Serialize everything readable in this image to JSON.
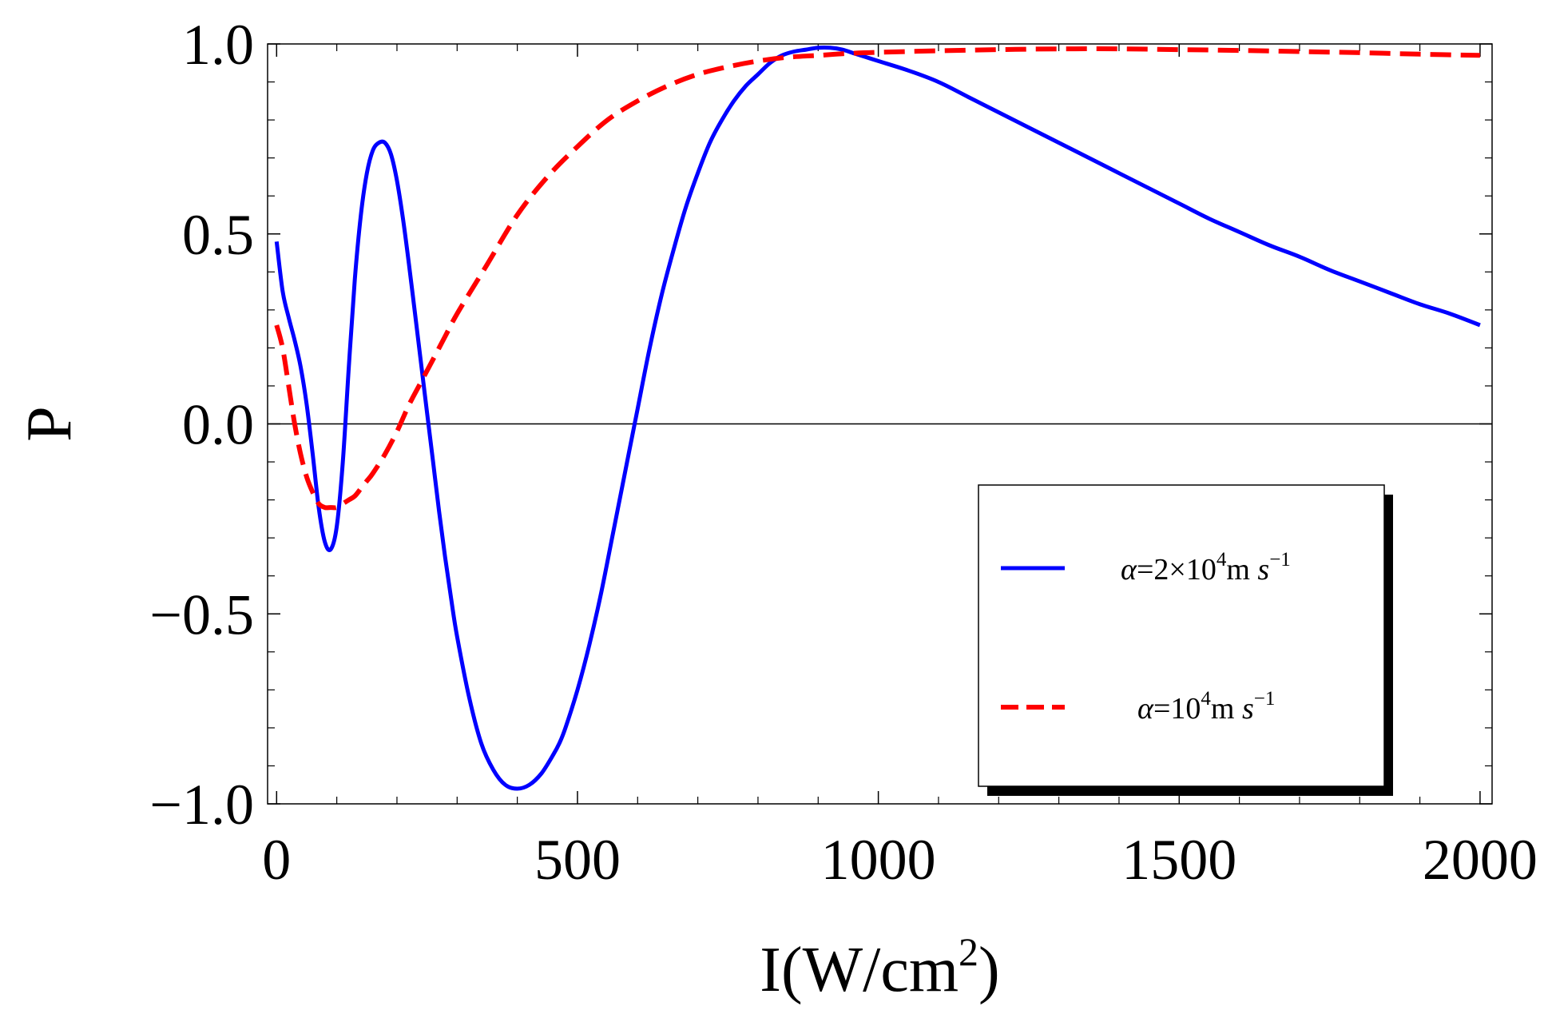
{
  "chart_data": {
    "type": "line",
    "title": "",
    "xlabel": "I(W/cm",
    "xlabel_sup": "2",
    "xlabel_end": ")",
    "ylabel": "P",
    "xlim": [
      -15,
      2020
    ],
    "ylim": [
      -1.0,
      1.0
    ],
    "x_ticks": [
      0,
      500,
      1000,
      1500,
      2000
    ],
    "x_tick_labels": [
      "0",
      "500",
      "1000",
      "1500",
      "2000"
    ],
    "y_ticks": [
      -1.0,
      -0.5,
      0.0,
      0.5,
      1.0
    ],
    "y_tick_labels": [
      "−1.0",
      "−0.5",
      "0.0",
      "0.5",
      "1.0"
    ],
    "legend_position": "lower-right",
    "series": [
      {
        "name": "alpha=2x10^4 m s^-1",
        "label_parts": [
          "α",
          "=2×10",
          "4",
          "m ",
          "s",
          "−1"
        ],
        "color": "#0000ff",
        "style": "solid",
        "x": [
          0,
          10,
          20,
          30,
          40,
          50,
          60,
          70,
          80,
          90,
          100,
          110,
          120,
          130,
          140,
          150,
          160,
          170,
          180,
          190,
          200,
          210,
          220,
          230,
          240,
          250,
          260,
          270,
          280,
          290,
          300,
          320,
          340,
          360,
          380,
          400,
          420,
          440,
          460,
          470,
          480,
          500,
          520,
          540,
          560,
          580,
          600,
          620,
          640,
          660,
          680,
          700,
          720,
          740,
          760,
          780,
          800,
          820,
          840,
          860,
          880,
          900,
          920,
          940,
          960,
          980,
          1000,
          1050,
          1100,
          1150,
          1200,
          1250,
          1300,
          1350,
          1400,
          1450,
          1500,
          1550,
          1600,
          1650,
          1700,
          1750,
          1800,
          1850,
          1900,
          1950,
          2000
        ],
        "y": [
          0.48,
          0.35,
          0.28,
          0.22,
          0.15,
          0.05,
          -0.08,
          -0.22,
          -0.31,
          -0.33,
          -0.27,
          -0.1,
          0.15,
          0.38,
          0.55,
          0.66,
          0.72,
          0.74,
          0.74,
          0.71,
          0.64,
          0.54,
          0.42,
          0.29,
          0.16,
          0.03,
          -0.1,
          -0.23,
          -0.35,
          -0.46,
          -0.56,
          -0.72,
          -0.84,
          -0.91,
          -0.95,
          -0.96,
          -0.95,
          -0.92,
          -0.87,
          -0.84,
          -0.8,
          -0.7,
          -0.58,
          -0.44,
          -0.28,
          -0.12,
          0.04,
          0.2,
          0.34,
          0.46,
          0.57,
          0.66,
          0.74,
          0.8,
          0.85,
          0.89,
          0.92,
          0.95,
          0.97,
          0.98,
          0.985,
          0.99,
          0.99,
          0.985,
          0.975,
          0.965,
          0.955,
          0.93,
          0.9,
          0.86,
          0.82,
          0.78,
          0.74,
          0.7,
          0.66,
          0.62,
          0.58,
          0.54,
          0.505,
          0.47,
          0.44,
          0.405,
          0.375,
          0.345,
          0.315,
          0.29,
          0.26
        ]
      },
      {
        "name": "alpha=10^4 m s^-1",
        "label_parts": [
          "α",
          "=10",
          "4",
          "m ",
          "s",
          "−1"
        ],
        "color": "#ff0000",
        "style": "dashed",
        "x": [
          0,
          10,
          20,
          30,
          40,
          50,
          60,
          70,
          80,
          90,
          100,
          110,
          120,
          130,
          140,
          150,
          160,
          180,
          200,
          220,
          240,
          260,
          280,
          300,
          350,
          400,
          450,
          500,
          550,
          600,
          650,
          700,
          750,
          800,
          850,
          900,
          950,
          1000,
          1100,
          1200,
          1300,
          1400,
          1500,
          1600,
          1700,
          1800,
          1900,
          2000
        ],
        "y": [
          0.26,
          0.2,
          0.1,
          0.0,
          -0.08,
          -0.14,
          -0.18,
          -0.21,
          -0.22,
          -0.22,
          -0.22,
          -0.21,
          -0.2,
          -0.19,
          -0.17,
          -0.15,
          -0.13,
          -0.08,
          -0.02,
          0.05,
          0.11,
          0.17,
          0.23,
          0.29,
          0.42,
          0.55,
          0.65,
          0.73,
          0.8,
          0.85,
          0.89,
          0.92,
          0.94,
          0.955,
          0.965,
          0.97,
          0.975,
          0.978,
          0.982,
          0.985,
          0.987,
          0.987,
          0.985,
          0.983,
          0.98,
          0.977,
          0.973,
          0.97
        ]
      }
    ]
  }
}
